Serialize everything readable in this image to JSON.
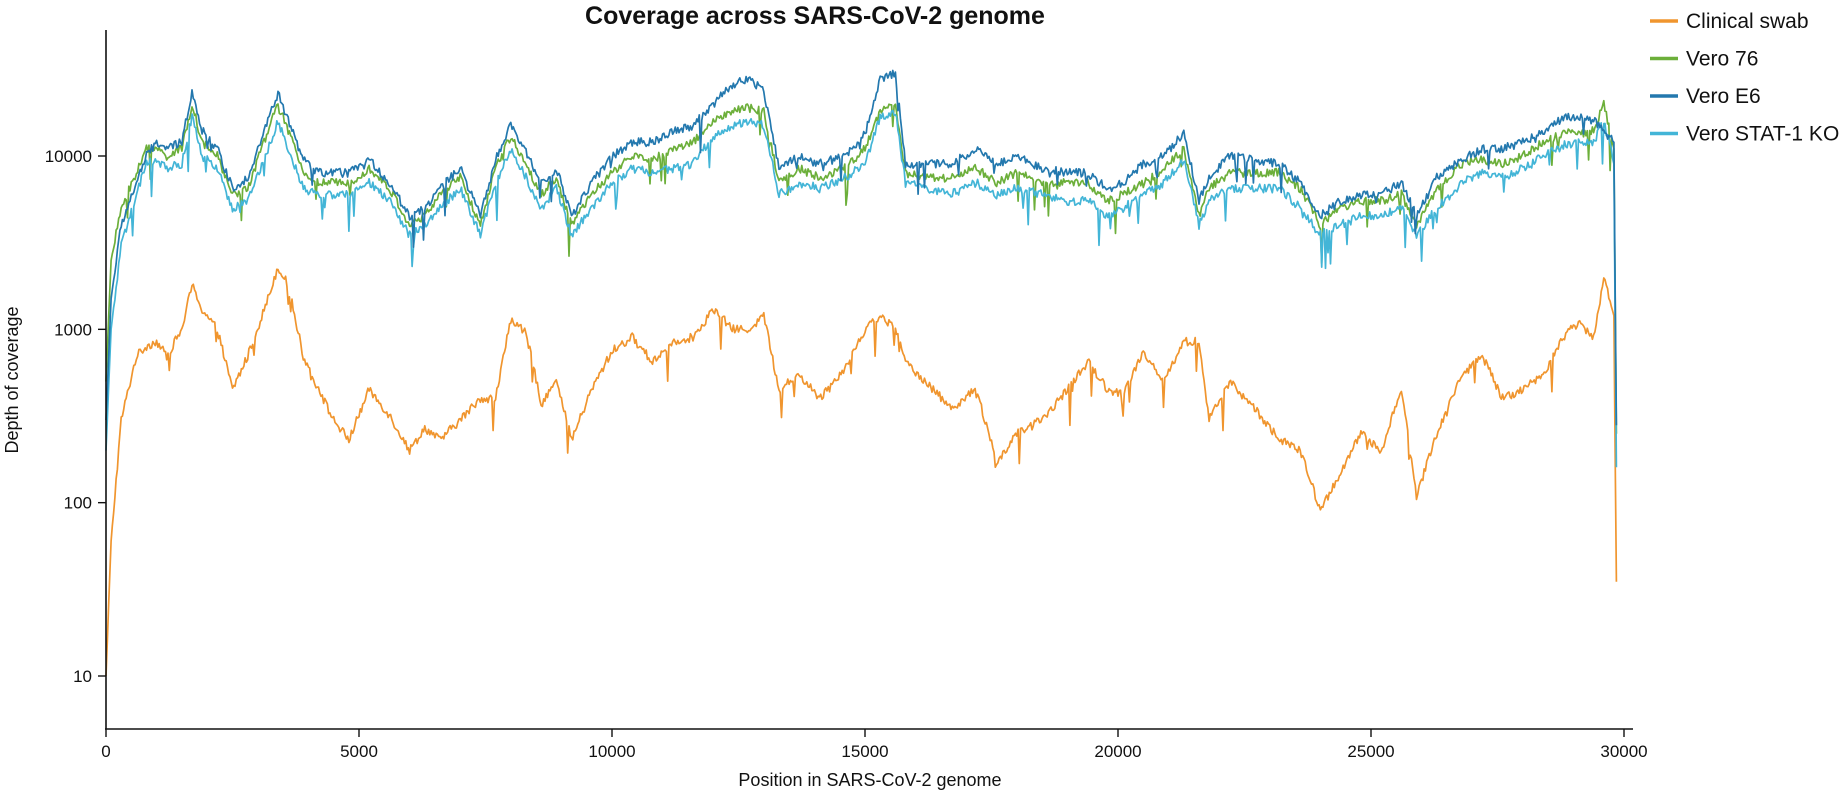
{
  "chart_data": {
    "type": "line",
    "title": "Coverage across SARS-CoV-2 genome",
    "xlabel": "Position in SARS-CoV-2 genome",
    "ylabel": "Depth of coverage",
    "xlim": [
      0,
      30000
    ],
    "ylim": [
      5,
      50000
    ],
    "yscale": "log",
    "xticks": [
      0,
      5000,
      10000,
      15000,
      20000,
      25000,
      30000
    ],
    "xtick_labels": [
      "0",
      "5000",
      "10000",
      "15000",
      "20000",
      "25000",
      "30000"
    ],
    "yticks": [
      10,
      100,
      1000,
      10000
    ],
    "ytick_labels": [
      "10",
      "100",
      "1000",
      "10000"
    ],
    "grid": false,
    "legend_position": "top-right",
    "x": [
      0,
      100,
      300,
      600,
      800,
      1000,
      1200,
      1500,
      1700,
      1900,
      2200,
      2500,
      2800,
      3200,
      3400,
      3600,
      3900,
      4200,
      4500,
      4800,
      5200,
      5600,
      6000,
      6300,
      6600,
      7000,
      7400,
      7700,
      8000,
      8300,
      8600,
      8900,
      9200,
      9600,
      10000,
      10400,
      10800,
      11200,
      11600,
      12000,
      12400,
      12700,
      13000,
      13300,
      13700,
      14100,
      14600,
      15000,
      15300,
      15600,
      15800,
      16200,
      16700,
      17200,
      17600,
      18000,
      18500,
      19000,
      19400,
      19800,
      20100,
      20500,
      20900,
      21300,
      21600,
      21800,
      22200,
      22700,
      23200,
      23600,
      24000,
      24400,
      24800,
      25200,
      25600,
      25900,
      26300,
      26800,
      27200,
      27600,
      28000,
      28400,
      28800,
      29100,
      29400,
      29600,
      29800,
      29850
    ],
    "series": [
      {
        "name": "Clinical swab",
        "color": "#F0952E",
        "values": [
          10,
          60,
          300,
          700,
          800,
          850,
          700,
          1000,
          1800,
          1300,
          1000,
          450,
          700,
          1500,
          2300,
          1800,
          700,
          450,
          300,
          230,
          450,
          320,
          200,
          270,
          230,
          300,
          400,
          400,
          1150,
          950,
          380,
          500,
          230,
          450,
          750,
          900,
          650,
          850,
          900,
          1300,
          1000,
          1000,
          1200,
          450,
          550,
          400,
          600,
          1000,
          1200,
          1000,
          650,
          500,
          350,
          450,
          170,
          250,
          300,
          450,
          650,
          450,
          420,
          750,
          500,
          850,
          850,
          300,
          500,
          350,
          230,
          200,
          90,
          150,
          250,
          200,
          450,
          110,
          250,
          550,
          700,
          400,
          450,
          550,
          900,
          1100,
          900,
          2000,
          1200,
          35
        ]
      },
      {
        "name": "Vero 76",
        "color": "#6CAF3A",
        "values": [
          500,
          2500,
          5000,
          8000,
          11000,
          11000,
          10000,
          11000,
          20000,
          12000,
          10000,
          6000,
          6500,
          14000,
          20000,
          14000,
          8000,
          7000,
          7000,
          7000,
          8500,
          6500,
          4000,
          4500,
          6000,
          7500,
          4000,
          8500,
          13000,
          9000,
          6000,
          7500,
          4000,
          6000,
          8000,
          10000,
          9500,
          11000,
          12000,
          16000,
          18000,
          19000,
          18000,
          7000,
          8500,
          7500,
          8500,
          11000,
          18000,
          20000,
          8000,
          7500,
          7500,
          8500,
          7000,
          8000,
          7000,
          7000,
          7000,
          5500,
          6000,
          7000,
          8500,
          11000,
          4500,
          6500,
          8000,
          8000,
          8000,
          6500,
          4000,
          5000,
          5500,
          5500,
          6000,
          4000,
          6500,
          9000,
          9500,
          9000,
          10000,
          12000,
          13500,
          13500,
          14000,
          20000,
          11000,
          250
        ]
      },
      {
        "name": "Vero E6",
        "color": "#2378AE",
        "values": [
          300,
          1500,
          4000,
          7000,
          10000,
          12000,
          11000,
          12000,
          24000,
          14000,
          11000,
          6500,
          7500,
          16000,
          23000,
          16000,
          9500,
          8000,
          8000,
          8000,
          9500,
          7000,
          4500,
          5000,
          6500,
          8500,
          4500,
          9500,
          15000,
          10500,
          7000,
          8500,
          4500,
          7000,
          10000,
          12000,
          12000,
          14000,
          15000,
          20000,
          26000,
          28000,
          24000,
          8500,
          10000,
          9000,
          10000,
          13500,
          28000,
          30000,
          9000,
          9000,
          9000,
          11000,
          9000,
          10000,
          8500,
          8000,
          8000,
          6500,
          7000,
          9000,
          10000,
          13500,
          5500,
          7500,
          10000,
          9500,
          9000,
          7000,
          4500,
          5500,
          6000,
          6000,
          7000,
          4500,
          7500,
          9500,
          11000,
          11000,
          12000,
          14000,
          16500,
          17000,
          16000,
          14000,
          12000,
          280
        ]
      },
      {
        "name": "Vero STAT-1 KO",
        "color": "#43B5D7",
        "values": [
          200,
          1000,
          3000,
          6000,
          9000,
          9500,
          8500,
          9000,
          17000,
          10000,
          8500,
          5000,
          5500,
          11000,
          16000,
          11000,
          6500,
          6000,
          6000,
          6000,
          7000,
          5500,
          3500,
          4000,
          5000,
          6500,
          3500,
          7000,
          11000,
          7500,
          5000,
          6500,
          3500,
          5000,
          7000,
          8500,
          8000,
          8500,
          9000,
          13000,
          15000,
          16000,
          15000,
          6000,
          7000,
          6500,
          7500,
          9000,
          17000,
          18000,
          7000,
          6500,
          6000,
          7000,
          6000,
          6500,
          6000,
          5500,
          5500,
          4500,
          5000,
          6000,
          7000,
          9500,
          4000,
          5500,
          6500,
          6500,
          6500,
          5000,
          3500,
          4000,
          4500,
          4500,
          5000,
          3500,
          5000,
          7000,
          8000,
          7500,
          8500,
          10000,
          11500,
          12000,
          12000,
          16000,
          9000,
          160
        ]
      }
    ]
  }
}
